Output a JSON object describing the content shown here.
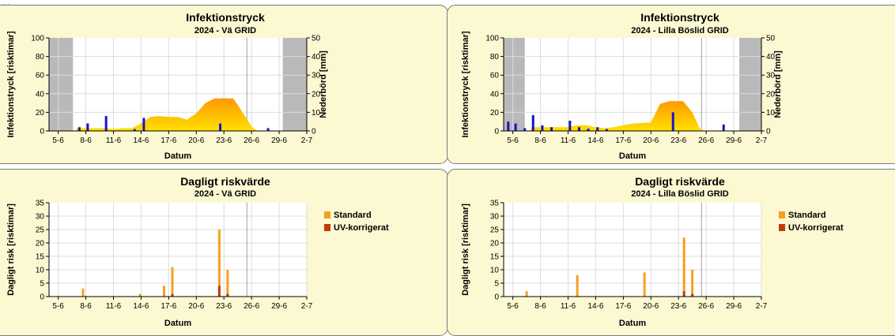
{
  "top_clip_text": "...",
  "colors": {
    "panel_bg": "#fbf8d2",
    "plot_bg": "#ffffff",
    "gridline": "#dddddd",
    "shade": "#b9b9b9",
    "today_line": "#b0b0b0",
    "rain_bar": "#1515c8",
    "area_top": "#ff9900",
    "area_bottom": "#ffe000",
    "standard": "#f5a020",
    "uv": "#c03a10"
  },
  "chart_data": [
    {
      "id": "infektion-va",
      "type": "area",
      "title": "Infektionstryck",
      "subtitle": "2024 - Vä GRID",
      "xlabel": "Datum",
      "ylabel": "Infektionstryck [risktimar]",
      "y2label": "Nederbörd [mm]",
      "ylim": [
        0,
        100
      ],
      "y2lim": [
        0,
        50
      ],
      "yticks": [
        0,
        20,
        40,
        60,
        80,
        100
      ],
      "y2ticks": [
        0,
        10,
        20,
        30,
        40,
        50
      ],
      "xlim": [
        4,
        32
      ],
      "xticks": [
        {
          "x": 5,
          "label": "5-6"
        },
        {
          "x": 8,
          "label": "8-6"
        },
        {
          "x": 11,
          "label": "11-6"
        },
        {
          "x": 14,
          "label": "14-6"
        },
        {
          "x": 17,
          "label": "17-6"
        },
        {
          "x": 20,
          "label": "20-6"
        },
        {
          "x": 23,
          "label": "23-6"
        },
        {
          "x": 26,
          "label": "26-6"
        },
        {
          "x": 29,
          "label": "29-6"
        },
        {
          "x": 32,
          "label": "2-7"
        }
      ],
      "shaded_ranges": [
        [
          4,
          6.6
        ],
        [
          29.4,
          32
        ]
      ],
      "vline": 25.5,
      "grid": true,
      "infection": [
        [
          6.9,
          0
        ],
        [
          7,
          3
        ],
        [
          10,
          3
        ],
        [
          11,
          2
        ],
        [
          12,
          3
        ],
        [
          13,
          3
        ],
        [
          14,
          8
        ],
        [
          15,
          15
        ],
        [
          16,
          16
        ],
        [
          17,
          15
        ],
        [
          18,
          15
        ],
        [
          19,
          12
        ],
        [
          20,
          19
        ],
        [
          21,
          30
        ],
        [
          22,
          35
        ],
        [
          24,
          35
        ],
        [
          24.5,
          28
        ],
        [
          25,
          20
        ],
        [
          26,
          5
        ],
        [
          26.6,
          0
        ]
      ],
      "rain": [
        [
          7.3,
          2
        ],
        [
          8.2,
          4
        ],
        [
          10.2,
          8
        ],
        [
          13.3,
          1
        ],
        [
          14.3,
          7
        ],
        [
          22.6,
          4
        ],
        [
          27.8,
          1.5
        ]
      ]
    },
    {
      "id": "infektion-lilla",
      "type": "area",
      "title": "Infektionstryck",
      "subtitle": "2024 - Lilla Böslid GRID",
      "xlabel": "Datum",
      "ylabel": "Infektionstryck [risktimar]",
      "y2label": "Nederbörd [mm]",
      "ylim": [
        0,
        100
      ],
      "y2lim": [
        0,
        50
      ],
      "yticks": [
        0,
        20,
        40,
        60,
        80,
        100
      ],
      "y2ticks": [
        0,
        10,
        20,
        30,
        40,
        50
      ],
      "xlim": [
        4,
        32
      ],
      "xticks": [
        {
          "x": 5,
          "label": "5-6"
        },
        {
          "x": 8,
          "label": "8-6"
        },
        {
          "x": 11,
          "label": "11-6"
        },
        {
          "x": 14,
          "label": "14-6"
        },
        {
          "x": 17,
          "label": "17-6"
        },
        {
          "x": 20,
          "label": "20-6"
        },
        {
          "x": 23,
          "label": "23-6"
        },
        {
          "x": 26,
          "label": "26-6"
        },
        {
          "x": 29,
          "label": "29-6"
        },
        {
          "x": 32,
          "label": "2-7"
        }
      ],
      "shaded_ranges": [
        [
          4,
          6.3
        ],
        [
          29.6,
          32
        ]
      ],
      "vline": 25.5,
      "grid": true,
      "infection": [
        [
          6.9,
          0
        ],
        [
          7,
          4
        ],
        [
          11,
          4
        ],
        [
          12,
          6
        ],
        [
          13,
          6
        ],
        [
          14,
          4
        ],
        [
          15,
          3
        ],
        [
          16,
          4
        ],
        [
          17,
          6
        ],
        [
          18,
          8
        ],
        [
          20,
          9
        ],
        [
          21,
          29
        ],
        [
          22,
          32
        ],
        [
          23.5,
          32
        ],
        [
          24.5,
          20
        ],
        [
          25.3,
          3
        ],
        [
          25.8,
          0
        ]
      ],
      "rain": [
        [
          4.5,
          5
        ],
        [
          5.3,
          4
        ],
        [
          6.3,
          1.5
        ],
        [
          7.2,
          8.5
        ],
        [
          8.2,
          3
        ],
        [
          9.2,
          2
        ],
        [
          11.2,
          5.5
        ],
        [
          12.2,
          2
        ],
        [
          13.2,
          1.2
        ],
        [
          14.2,
          2
        ],
        [
          15.2,
          1
        ],
        [
          22.4,
          10
        ],
        [
          27.9,
          3.5
        ]
      ]
    },
    {
      "id": "dagligt-va",
      "type": "bar",
      "title": "Dagligt riskvärde",
      "subtitle": "2024 - Vä GRID",
      "xlabel": "Datum",
      "ylabel": "Dagligt risk [risktimar]",
      "ylim": [
        0,
        35
      ],
      "yticks": [
        0,
        5,
        10,
        15,
        20,
        25,
        30,
        35
      ],
      "xlim": [
        4,
        32
      ],
      "xticks": [
        {
          "x": 5,
          "label": "5-6"
        },
        {
          "x": 8,
          "label": "8-6"
        },
        {
          "x": 11,
          "label": "11-6"
        },
        {
          "x": 14,
          "label": "14-6"
        },
        {
          "x": 17,
          "label": "17-6"
        },
        {
          "x": 20,
          "label": "20-6"
        },
        {
          "x": 23,
          "label": "23-6"
        },
        {
          "x": 26,
          "label": "26-6"
        },
        {
          "x": 29,
          "label": "29-6"
        },
        {
          "x": 32,
          "label": "2-7"
        }
      ],
      "vline": 25.5,
      "grid": true,
      "legend": {
        "placement": "right",
        "items": [
          "Standard",
          "UV-korrigerat"
        ]
      },
      "series": [
        {
          "name": "Standard",
          "points": [
            [
              7.7,
              3
            ],
            [
              13.9,
              1
            ],
            [
              16.5,
              4
            ],
            [
              17.4,
              11
            ],
            [
              22.5,
              25
            ],
            [
              23.4,
              10
            ]
          ]
        },
        {
          "name": "UV-korrigerat",
          "points": [
            [
              17.4,
              1
            ],
            [
              22.5,
              4
            ],
            [
              23.4,
              1
            ]
          ]
        }
      ]
    },
    {
      "id": "dagligt-lilla",
      "type": "bar",
      "title": "Dagligt riskvärde",
      "subtitle": "2024 - Lilla Böslid GRID",
      "xlabel": "Datum",
      "ylabel": "Dagligt risk [risktimar]",
      "ylim": [
        0,
        35
      ],
      "yticks": [
        0,
        5,
        10,
        15,
        20,
        25,
        30,
        35
      ],
      "xlim": [
        4,
        32
      ],
      "xticks": [
        {
          "x": 5,
          "label": "5-6"
        },
        {
          "x": 8,
          "label": "8-6"
        },
        {
          "x": 11,
          "label": "11-6"
        },
        {
          "x": 14,
          "label": "14-6"
        },
        {
          "x": 17,
          "label": "17-6"
        },
        {
          "x": 20,
          "label": "20-6"
        },
        {
          "x": 23,
          "label": "23-6"
        },
        {
          "x": 26,
          "label": "26-6"
        },
        {
          "x": 29,
          "label": "29-6"
        },
        {
          "x": 32,
          "label": "2-7"
        }
      ],
      "vline": 25.5,
      "grid": true,
      "legend": {
        "placement": "right",
        "items": [
          "Standard",
          "UV-korrigerat"
        ]
      },
      "series": [
        {
          "name": "Standard",
          "points": [
            [
              6.5,
              2
            ],
            [
              12,
              8
            ],
            [
              19.3,
              9
            ],
            [
              23.6,
              22
            ],
            [
              24.5,
              10
            ]
          ]
        },
        {
          "name": "UV-korrigerat",
          "points": [
            [
              23.6,
              2
            ],
            [
              24.5,
              1
            ]
          ]
        }
      ]
    }
  ]
}
